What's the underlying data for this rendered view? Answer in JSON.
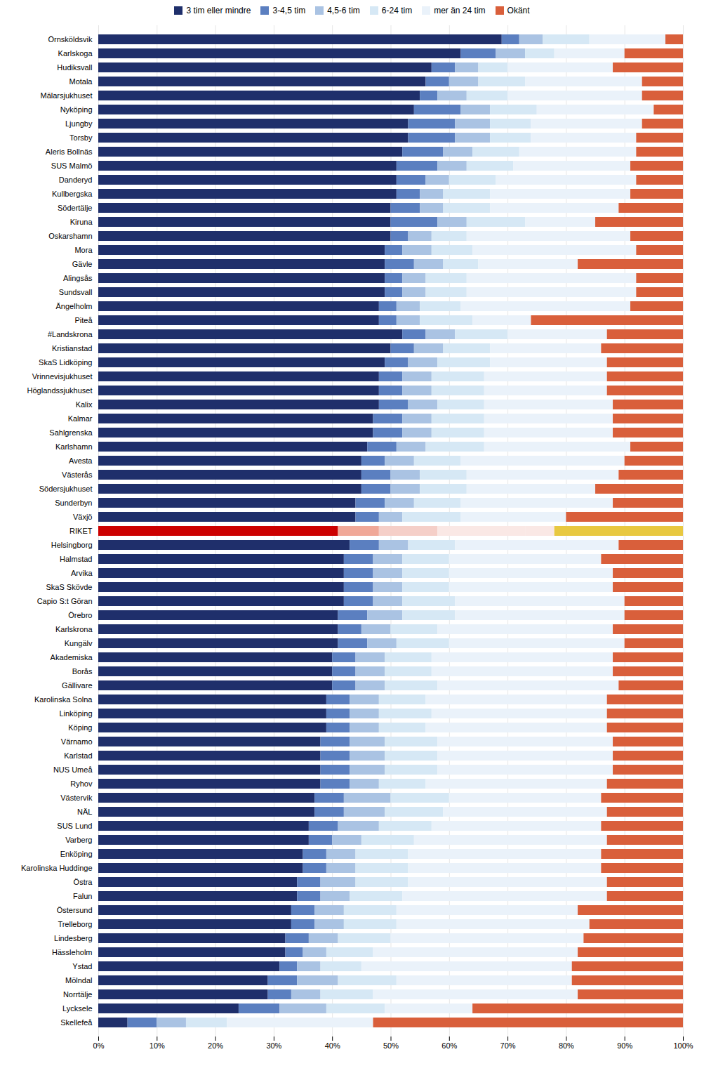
{
  "chart_data": {
    "type": "bar",
    "orientation": "horizontal",
    "stacked": true,
    "grid": true,
    "legend": "top",
    "categories": [
      "Örnsköldsvik",
      "Karlskoga",
      "Hudiksvall",
      "Motala",
      "Mälarsjukhuset",
      "Nyköping",
      "Ljungby",
      "Torsby",
      "Aleris Bollnäs",
      "SUS Malmö",
      "Danderyd",
      "Kullbergska",
      "Södertälje",
      "Kiruna",
      "Oskarshamn",
      "Mora",
      "Gävle",
      "Alingsås",
      "Sundsvall",
      "Ängelholm",
      "Piteå",
      "#Landskrona",
      "Kristianstad",
      "SkaS Lidköping",
      "Vrinnevisjukhuset",
      "Höglandssjukhuset",
      "Kalix",
      "Kalmar",
      "Sahlgrenska",
      "Karlshamn",
      "Avesta",
      "Västerås",
      "Södersjukhuset",
      "Sunderbyn",
      "Växjö",
      "RIKET",
      "Helsingborg",
      "Halmstad",
      "Arvika",
      "SkaS Skövde",
      "Capio S:t Göran",
      "Örebro",
      "Karlskrona",
      "Kungälv",
      "Akademiska",
      "Borås",
      "Gällivare",
      "Karolinska Solna",
      "Linköping",
      "Köping",
      "Värnamo",
      "Karlstad",
      "NUS Umeå",
      "Ryhov",
      "Västervik",
      "NÄL",
      "SUS Lund",
      "Varberg",
      "Enköping",
      "Karolinska Huddinge",
      "Östra",
      "Falun",
      "Östersund",
      "Trelleborg",
      "Lindesberg",
      "Hässleholm",
      "Ystad",
      "Mölndal",
      "Norrtälje",
      "Lycksele",
      "Skellefeå"
    ],
    "xlim": [
      0,
      100
    ],
    "xticks": [
      {
        "value": 0,
        "label": "0%"
      },
      {
        "value": 10,
        "label": "10%"
      },
      {
        "value": 20,
        "label": "20%"
      },
      {
        "value": 30,
        "label": "30%"
      },
      {
        "value": 40,
        "label": "40%"
      },
      {
        "value": 50,
        "label": "50%"
      },
      {
        "value": 60,
        "label": "60%"
      },
      {
        "value": 70,
        "label": "70%"
      },
      {
        "value": 80,
        "label": "80%"
      },
      {
        "value": 90,
        "label": "90%"
      },
      {
        "value": 100,
        "label": "100%"
      }
    ],
    "series": [
      {
        "name": "3 tim eller mindre",
        "color": "#1f2f6b",
        "values": [
          69,
          62,
          57,
          56,
          55,
          54,
          53,
          53,
          52,
          51,
          51,
          51,
          50,
          50,
          50,
          49,
          49,
          49,
          49,
          48,
          48,
          52,
          50,
          49,
          48,
          48,
          48,
          47,
          47,
          46,
          45,
          45,
          45,
          44,
          44,
          41,
          43,
          42,
          42,
          42,
          42,
          41,
          41,
          41,
          40,
          40,
          40,
          39,
          39,
          39,
          38,
          38,
          38,
          38,
          37,
          37,
          36,
          36,
          35,
          35,
          34,
          34,
          33,
          33,
          32,
          32,
          31,
          29,
          29,
          24,
          5
        ],
        "colors": [
          "#1f2f6b",
          "#1f2f6b",
          "#1f2f6b",
          "#1f2f6b",
          "#1f2f6b",
          "#1f2f6b",
          "#1f2f6b",
          "#1f2f6b",
          "#1f2f6b",
          "#1f2f6b",
          "#1f2f6b",
          "#1f2f6b",
          "#1f2f6b",
          "#1f2f6b",
          "#1f2f6b",
          "#1f2f6b",
          "#1f2f6b",
          "#1f2f6b",
          "#1f2f6b",
          "#1f2f6b",
          "#1f2f6b",
          "#1f2f6b",
          "#1f2f6b",
          "#1f2f6b",
          "#1f2f6b",
          "#1f2f6b",
          "#1f2f6b",
          "#1f2f6b",
          "#1f2f6b",
          "#1f2f6b",
          "#1f2f6b",
          "#1f2f6b",
          "#1f2f6b",
          "#1f2f6b",
          "#1f2f6b",
          "#cc0000",
          "#1f2f6b",
          "#1f2f6b",
          "#1f2f6b",
          "#1f2f6b",
          "#1f2f6b",
          "#1f2f6b",
          "#1f2f6b",
          "#1f2f6b",
          "#1f2f6b",
          "#1f2f6b",
          "#1f2f6b",
          "#1f2f6b",
          "#1f2f6b",
          "#1f2f6b",
          "#1f2f6b",
          "#1f2f6b",
          "#1f2f6b",
          "#1f2f6b",
          "#1f2f6b",
          "#1f2f6b",
          "#1f2f6b",
          "#1f2f6b",
          "#1f2f6b",
          "#1f2f6b",
          "#1f2f6b",
          "#1f2f6b",
          "#1f2f6b",
          "#1f2f6b",
          "#1f2f6b",
          "#1f2f6b",
          "#1f2f6b",
          "#1f2f6b",
          "#1f2f6b",
          "#1f2f6b",
          "#1f2f6b"
        ]
      },
      {
        "name": "3-4,5 tim",
        "color": "#5b7fc0",
        "values": [
          3,
          6,
          4,
          4,
          3,
          8,
          8,
          8,
          7,
          7,
          5,
          4,
          5,
          8,
          3,
          3,
          5,
          3,
          3,
          3,
          3,
          4,
          4,
          4,
          4,
          4,
          5,
          5,
          5,
          5,
          4,
          5,
          5,
          5,
          4,
          7,
          5,
          5,
          5,
          5,
          5,
          5,
          4,
          5,
          4,
          4,
          4,
          4,
          4,
          4,
          5,
          5,
          5,
          5,
          5,
          5,
          5,
          4,
          4,
          4,
          4,
          4,
          4,
          4,
          4,
          3,
          3,
          5,
          4,
          7,
          5
        ],
        "colors": [
          "#5b7fc0",
          "#5b7fc0",
          "#5b7fc0",
          "#5b7fc0",
          "#5b7fc0",
          "#5b7fc0",
          "#5b7fc0",
          "#5b7fc0",
          "#5b7fc0",
          "#5b7fc0",
          "#5b7fc0",
          "#5b7fc0",
          "#5b7fc0",
          "#5b7fc0",
          "#5b7fc0",
          "#5b7fc0",
          "#5b7fc0",
          "#5b7fc0",
          "#5b7fc0",
          "#5b7fc0",
          "#5b7fc0",
          "#5b7fc0",
          "#5b7fc0",
          "#5b7fc0",
          "#5b7fc0",
          "#5b7fc0",
          "#5b7fc0",
          "#5b7fc0",
          "#5b7fc0",
          "#5b7fc0",
          "#5b7fc0",
          "#5b7fc0",
          "#5b7fc0",
          "#5b7fc0",
          "#5b7fc0",
          "#f0a898",
          "#5b7fc0",
          "#5b7fc0",
          "#5b7fc0",
          "#5b7fc0",
          "#5b7fc0",
          "#5b7fc0",
          "#5b7fc0",
          "#5b7fc0",
          "#5b7fc0",
          "#5b7fc0",
          "#5b7fc0",
          "#5b7fc0",
          "#5b7fc0",
          "#5b7fc0",
          "#5b7fc0",
          "#5b7fc0",
          "#5b7fc0",
          "#5b7fc0",
          "#5b7fc0",
          "#5b7fc0",
          "#5b7fc0",
          "#5b7fc0",
          "#5b7fc0",
          "#5b7fc0",
          "#5b7fc0",
          "#5b7fc0",
          "#5b7fc0",
          "#5b7fc0",
          "#5b7fc0",
          "#5b7fc0",
          "#5b7fc0",
          "#5b7fc0",
          "#5b7fc0",
          "#5b7fc0",
          "#5b7fc0"
        ]
      },
      {
        "name": "4,5-6 tim",
        "color": "#aac3e3",
        "values": [
          4,
          5,
          4,
          5,
          5,
          5,
          6,
          6,
          5,
          5,
          4,
          4,
          4,
          5,
          4,
          5,
          5,
          4,
          4,
          4,
          4,
          5,
          5,
          5,
          5,
          5,
          5,
          5,
          5,
          5,
          5,
          5,
          5,
          5,
          4,
          10,
          5,
          5,
          5,
          5,
          5,
          6,
          5,
          5,
          5,
          5,
          5,
          5,
          5,
          5,
          6,
          6,
          6,
          5,
          8,
          7,
          7,
          5,
          5,
          5,
          6,
          5,
          5,
          5,
          5,
          4,
          4,
          7,
          5,
          8,
          5
        ],
        "colors": [
          "#aac3e3",
          "#aac3e3",
          "#aac3e3",
          "#aac3e3",
          "#aac3e3",
          "#aac3e3",
          "#aac3e3",
          "#aac3e3",
          "#aac3e3",
          "#aac3e3",
          "#aac3e3",
          "#aac3e3",
          "#aac3e3",
          "#aac3e3",
          "#aac3e3",
          "#aac3e3",
          "#aac3e3",
          "#aac3e3",
          "#aac3e3",
          "#aac3e3",
          "#aac3e3",
          "#aac3e3",
          "#aac3e3",
          "#aac3e3",
          "#aac3e3",
          "#aac3e3",
          "#aac3e3",
          "#aac3e3",
          "#aac3e3",
          "#aac3e3",
          "#aac3e3",
          "#aac3e3",
          "#aac3e3",
          "#aac3e3",
          "#aac3e3",
          "#f5cfc8",
          "#aac3e3",
          "#aac3e3",
          "#aac3e3",
          "#aac3e3",
          "#aac3e3",
          "#aac3e3",
          "#aac3e3",
          "#aac3e3",
          "#aac3e3",
          "#aac3e3",
          "#aac3e3",
          "#aac3e3",
          "#aac3e3",
          "#aac3e3",
          "#aac3e3",
          "#aac3e3",
          "#aac3e3",
          "#aac3e3",
          "#aac3e3",
          "#aac3e3",
          "#aac3e3",
          "#aac3e3",
          "#aac3e3",
          "#aac3e3",
          "#aac3e3",
          "#aac3e3",
          "#aac3e3",
          "#aac3e3",
          "#aac3e3",
          "#aac3e3",
          "#aac3e3",
          "#aac3e3",
          "#aac3e3",
          "#aac3e3",
          "#aac3e3"
        ]
      },
      {
        "name": "6-24 tim",
        "color": "#d6e8f5",
        "values": [
          8,
          5,
          5,
          8,
          7,
          8,
          7,
          7,
          8,
          8,
          8,
          8,
          8,
          10,
          6,
          7,
          6,
          7,
          7,
          7,
          9,
          9,
          8,
          9,
          9,
          9,
          8,
          9,
          9,
          10,
          8,
          8,
          8,
          8,
          10,
          15,
          8,
          8,
          8,
          8,
          9,
          9,
          8,
          9,
          8,
          8,
          9,
          8,
          9,
          8,
          9,
          9,
          9,
          8,
          10,
          10,
          9,
          9,
          9,
          9,
          9,
          9,
          9,
          9,
          9,
          8,
          7,
          10,
          9,
          10,
          7
        ],
        "colors": [
          "#d6e8f5",
          "#d6e8f5",
          "#d6e8f5",
          "#d6e8f5",
          "#d6e8f5",
          "#d6e8f5",
          "#d6e8f5",
          "#d6e8f5",
          "#d6e8f5",
          "#d6e8f5",
          "#d6e8f5",
          "#d6e8f5",
          "#d6e8f5",
          "#d6e8f5",
          "#d6e8f5",
          "#d6e8f5",
          "#d6e8f5",
          "#d6e8f5",
          "#d6e8f5",
          "#d6e8f5",
          "#d6e8f5",
          "#d6e8f5",
          "#d6e8f5",
          "#d6e8f5",
          "#d6e8f5",
          "#d6e8f5",
          "#d6e8f5",
          "#d6e8f5",
          "#d6e8f5",
          "#d6e8f5",
          "#d6e8f5",
          "#d6e8f5",
          "#d6e8f5",
          "#d6e8f5",
          "#d6e8f5",
          "#fae8e5",
          "#d6e8f5",
          "#d6e8f5",
          "#d6e8f5",
          "#d6e8f5",
          "#d6e8f5",
          "#d6e8f5",
          "#d6e8f5",
          "#d6e8f5",
          "#d6e8f5",
          "#d6e8f5",
          "#d6e8f5",
          "#d6e8f5",
          "#d6e8f5",
          "#d6e8f5",
          "#d6e8f5",
          "#d6e8f5",
          "#d6e8f5",
          "#d6e8f5",
          "#d6e8f5",
          "#d6e8f5",
          "#d6e8f5",
          "#d6e8f5",
          "#d6e8f5",
          "#d6e8f5",
          "#d6e8f5",
          "#d6e8f5",
          "#d6e8f5",
          "#d6e8f5",
          "#d6e8f5",
          "#d6e8f5",
          "#d6e8f5",
          "#d6e8f5",
          "#d6e8f5",
          "#d6e8f5",
          "#d6e8f5"
        ]
      },
      {
        "name": "mer än 24 tim",
        "color": "#eaf2fa",
        "values": [
          13,
          12,
          18,
          20,
          23,
          20,
          19,
          18,
          20,
          20,
          24,
          24,
          22,
          12,
          28,
          28,
          17,
          29,
          29,
          29,
          10,
          17,
          19,
          20,
          21,
          21,
          22,
          22,
          22,
          25,
          28,
          26,
          22,
          26,
          18,
          5,
          28,
          26,
          28,
          28,
          29,
          29,
          30,
          30,
          31,
          31,
          31,
          31,
          30,
          31,
          30,
          30,
          30,
          31,
          26,
          28,
          29,
          33,
          33,
          33,
          34,
          35,
          31,
          33,
          33,
          35,
          36,
          30,
          35,
          15,
          25
        ],
        "colors": [
          "#eaf2fa",
          "#eaf2fa",
          "#eaf2fa",
          "#eaf2fa",
          "#eaf2fa",
          "#eaf2fa",
          "#eaf2fa",
          "#eaf2fa",
          "#eaf2fa",
          "#eaf2fa",
          "#eaf2fa",
          "#eaf2fa",
          "#eaf2fa",
          "#eaf2fa",
          "#eaf2fa",
          "#eaf2fa",
          "#eaf2fa",
          "#eaf2fa",
          "#eaf2fa",
          "#eaf2fa",
          "#eaf2fa",
          "#eaf2fa",
          "#eaf2fa",
          "#eaf2fa",
          "#eaf2fa",
          "#eaf2fa",
          "#eaf2fa",
          "#eaf2fa",
          "#eaf2fa",
          "#eaf2fa",
          "#eaf2fa",
          "#eaf2fa",
          "#eaf2fa",
          "#eaf2fa",
          "#eaf2fa",
          "#fae8e5",
          "#eaf2fa",
          "#eaf2fa",
          "#eaf2fa",
          "#eaf2fa",
          "#eaf2fa",
          "#eaf2fa",
          "#eaf2fa",
          "#eaf2fa",
          "#eaf2fa",
          "#eaf2fa",
          "#eaf2fa",
          "#eaf2fa",
          "#eaf2fa",
          "#eaf2fa",
          "#eaf2fa",
          "#eaf2fa",
          "#eaf2fa",
          "#eaf2fa",
          "#eaf2fa",
          "#eaf2fa",
          "#eaf2fa",
          "#eaf2fa",
          "#eaf2fa",
          "#eaf2fa",
          "#eaf2fa",
          "#eaf2fa",
          "#eaf2fa",
          "#eaf2fa",
          "#eaf2fa",
          "#eaf2fa",
          "#eaf2fa",
          "#eaf2fa",
          "#eaf2fa",
          "#eaf2fa",
          "#eaf2fa"
        ]
      },
      {
        "name": "Okänt",
        "color": "#d95f3b",
        "values": [
          3,
          10,
          12,
          7,
          7,
          5,
          7,
          8,
          8,
          9,
          8,
          9,
          11,
          15,
          9,
          8,
          18,
          8,
          8,
          9,
          26,
          13,
          14,
          13,
          13,
          13,
          12,
          12,
          12,
          9,
          10,
          11,
          15,
          12,
          20,
          22,
          11,
          14,
          12,
          12,
          10,
          10,
          12,
          10,
          12,
          12,
          11,
          13,
          13,
          13,
          12,
          12,
          12,
          13,
          14,
          13,
          14,
          13,
          14,
          14,
          13,
          13,
          18,
          16,
          17,
          18,
          19,
          19,
          18,
          36,
          53
        ],
        "colors": [
          "#d95f3b",
          "#d95f3b",
          "#d95f3b",
          "#d95f3b",
          "#d95f3b",
          "#d95f3b",
          "#d95f3b",
          "#d95f3b",
          "#d95f3b",
          "#d95f3b",
          "#d95f3b",
          "#d95f3b",
          "#d95f3b",
          "#d95f3b",
          "#d95f3b",
          "#d95f3b",
          "#d95f3b",
          "#d95f3b",
          "#d95f3b",
          "#d95f3b",
          "#d95f3b",
          "#d95f3b",
          "#d95f3b",
          "#d95f3b",
          "#d95f3b",
          "#d95f3b",
          "#d95f3b",
          "#d95f3b",
          "#d95f3b",
          "#d95f3b",
          "#d95f3b",
          "#d95f3b",
          "#d95f3b",
          "#d95f3b",
          "#d95f3b",
          "#e8c840",
          "#d95f3b",
          "#d95f3b",
          "#d95f3b",
          "#d95f3b",
          "#d95f3b",
          "#d95f3b",
          "#d95f3b",
          "#d95f3b",
          "#d95f3b",
          "#d95f3b",
          "#d95f3b",
          "#d95f3b",
          "#d95f3b",
          "#d95f3b",
          "#d95f3b",
          "#d95f3b",
          "#d95f3b",
          "#d95f3b",
          "#d95f3b",
          "#d95f3b",
          "#d95f3b",
          "#d95f3b",
          "#d95f3b",
          "#d95f3b",
          "#d95f3b",
          "#d95f3b",
          "#d95f3b",
          "#d95f3b",
          "#d95f3b",
          "#d95f3b",
          "#d95f3b",
          "#d95f3b",
          "#d95f3b",
          "#d95f3b",
          "#d95f3b"
        ]
      }
    ]
  }
}
